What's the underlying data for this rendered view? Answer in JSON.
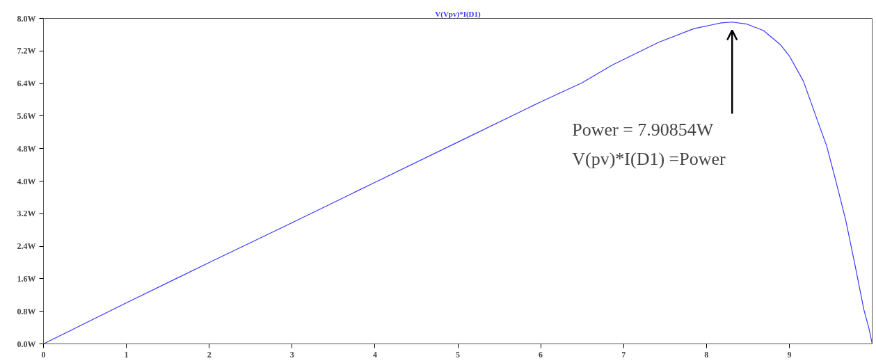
{
  "chart_data": {
    "type": "line",
    "title": "V(Vpv)*I(D1)",
    "x": [
      0,
      1,
      2,
      3,
      4,
      5,
      6,
      6.5,
      6.86,
      7.42,
      7.85,
      8.18,
      8.31,
      8.49,
      8.69,
      8.89,
      9.0,
      9.17,
      9.34,
      9.45,
      9.56,
      9.68,
      9.79,
      9.9,
      9.96,
      10
    ],
    "series": [
      {
        "color": "#3838ff",
        "values": [
          0,
          1.01,
          2.0,
          2.98,
          3.97,
          4.96,
          5.95,
          6.42,
          6.85,
          7.41,
          7.75,
          7.89,
          7.91,
          7.86,
          7.7,
          7.36,
          7.08,
          6.46,
          5.49,
          4.87,
          4.02,
          3.05,
          1.97,
          0.84,
          0.39,
          0
        ]
      }
    ],
    "xlim": [
      0,
      10
    ],
    "xticks": [
      0,
      1,
      2,
      3,
      4,
      5,
      6,
      7,
      8,
      9
    ],
    "ylim": [
      0,
      8
    ],
    "yticks": [
      {
        "value": 0,
        "label": "0.0W"
      },
      {
        "value": 0.8,
        "label": "0.8W"
      },
      {
        "value": 1.6,
        "label": "1.6W"
      },
      {
        "value": 2.4,
        "label": "2.4W"
      },
      {
        "value": 3.2,
        "label": "3.2W"
      },
      {
        "value": 4.0,
        "label": "4.0W"
      },
      {
        "value": 4.8,
        "label": "4.8W"
      },
      {
        "value": 5.6,
        "label": "5.6W"
      },
      {
        "value": 6.4,
        "label": "6.4W"
      },
      {
        "value": 7.2,
        "label": "7.2W"
      },
      {
        "value": 8.0,
        "label": "8.0W"
      }
    ],
    "grid": false,
    "annotations": [
      "Power = 7.90854W",
      "V(pv)*I(D1) =Power"
    ]
  }
}
